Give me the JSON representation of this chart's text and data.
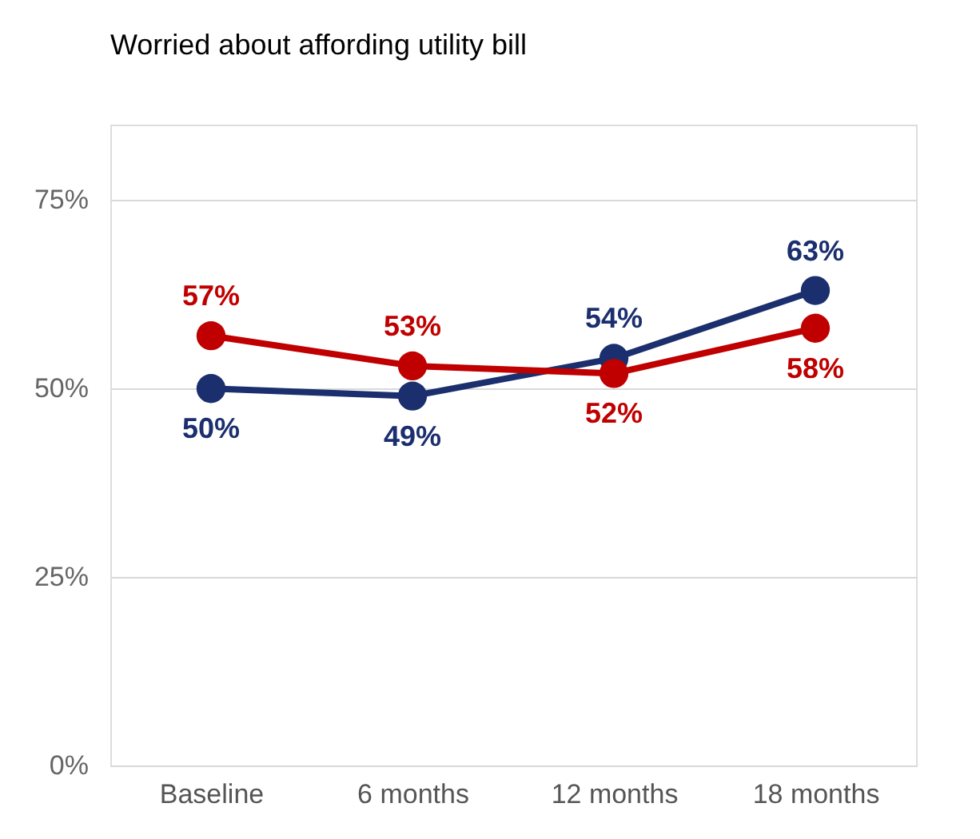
{
  "chart_data": {
    "type": "line",
    "title": "Worried about affording utility bill",
    "categories": [
      "Baseline",
      "6 months",
      "12 months",
      "18 months"
    ],
    "series": [
      {
        "color": "#1b2f6e",
        "values": [
          50,
          49,
          54,
          63
        ],
        "value_labels": [
          "50%",
          "49%",
          "54%",
          "63%"
        ]
      },
      {
        "color": "#c00000",
        "values": [
          57,
          53,
          52,
          58
        ],
        "value_labels": [
          "57%",
          "53%",
          "52%",
          "58%"
        ]
      }
    ],
    "ylim": [
      0,
      85
    ],
    "yticks": [
      {
        "value": 0,
        "label": "0%"
      },
      {
        "value": 25,
        "label": "25%"
      },
      {
        "value": 50,
        "label": "50%"
      },
      {
        "value": 75,
        "label": "75%"
      }
    ],
    "grid": "y",
    "legend": false,
    "marker": "circle",
    "line_style": "solid"
  }
}
